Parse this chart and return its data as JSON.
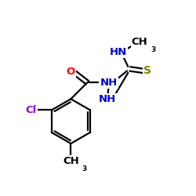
{
  "bg_color": "#ffffff",
  "bond_color": "#000000",
  "bond_width": 1.6,
  "atom_colors": {
    "O": "#ff0000",
    "N": "#0000cc",
    "S": "#808000",
    "Cl": "#9900cc",
    "C": "#000000"
  },
  "font_size_label": 9.5,
  "font_size_subscript": 6.5,
  "figsize": [
    2.5,
    2.5
  ],
  "dpi": 100,
  "xlim": [
    0,
    10
  ],
  "ylim": [
    0,
    10
  ]
}
